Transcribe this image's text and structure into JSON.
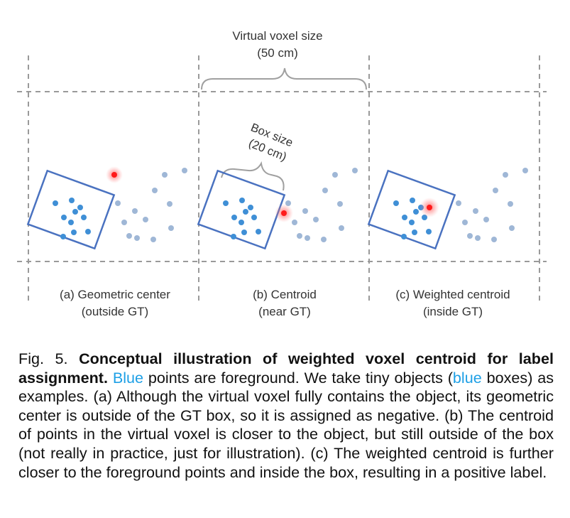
{
  "figure": {
    "top_label": "Virtual voxel size",
    "top_sublabel": "(50 cm)",
    "box_label": "Box size",
    "box_sublabel": "(20 cm)",
    "panels": [
      {
        "caption": "(a) Geometric center",
        "sub": "(outside GT)"
      },
      {
        "caption": "(b) Centroid",
        "sub": "(near GT)"
      },
      {
        "caption": "(c) Weighted centroid",
        "sub": "(inside GT)"
      }
    ],
    "colors": {
      "gt_box": "#4a72c0",
      "foreground_point": "#3f8fd6",
      "background_point": "#9fb7d6",
      "center_marker": "#ff1a1a",
      "dashed_line": "#9a9a9a",
      "brace": "#a0a0a0"
    }
  },
  "caption": {
    "prefix": "Fig. 5.",
    "title": "Conceptual illustration of weighted voxel centroid for label assignment.",
    "s1_hl": "Blue",
    "s1_rest": " points are foreground. We take tiny objects (",
    "s2_hl": "blue",
    "s2_rest": " boxes) as examples. (a) Although the virtual voxel fully contains the object, its geometric center is outside of the GT box, so it is assigned as negative. (b) The centroid of points in the virtual voxel is closer to the object, but still outside of the box (not really in practice, just for illustration). (c) The weighted centroid is further closer to the foreground points and inside the box, resulting in a positive label."
  }
}
